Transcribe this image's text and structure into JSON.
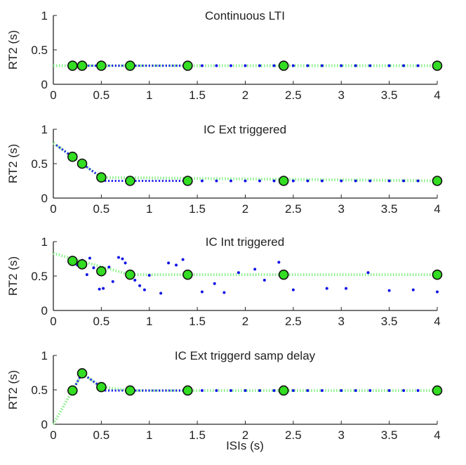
{
  "colors": {
    "axis": "#262626",
    "dots": "#1010e8",
    "dashed": "#2222ee",
    "fit": "#8cf08c",
    "marker_fill": "#33dd22",
    "marker_edge": "#111111"
  },
  "chart_data": [
    {
      "type": "scatter",
      "title": "Continuous LTI",
      "ylabel": "RT2 (s)",
      "xlabel": "",
      "xlim": [
        0,
        4
      ],
      "ylim": [
        0,
        1
      ],
      "xticks": [
        0,
        0.5,
        1,
        1.5,
        2,
        2.5,
        3,
        3.5,
        4
      ],
      "xtick_labels": [
        "0",
        "0.5",
        "1",
        "1.5",
        "2",
        "2.5",
        "3",
        "3.5",
        "4"
      ],
      "yticks": [
        0,
        0.5,
        1
      ],
      "ytick_labels": [
        "0",
        "0.5",
        "1"
      ],
      "fit_line": {
        "x": [
          0,
          4
        ],
        "y": [
          0.27,
          0.27
        ]
      },
      "dense_segments": [
        {
          "x0": 0.15,
          "x1": 1.42,
          "y0": 0.27,
          "y1": 0.27
        }
      ],
      "dots": [
        [
          1.55,
          0.27
        ],
        [
          1.7,
          0.27
        ],
        [
          1.85,
          0.27
        ],
        [
          2.0,
          0.27
        ],
        [
          2.15,
          0.27
        ],
        [
          2.3,
          0.27
        ],
        [
          2.5,
          0.27
        ],
        [
          2.65,
          0.27
        ],
        [
          2.8,
          0.27
        ],
        [
          3.0,
          0.27
        ],
        [
          3.15,
          0.27
        ],
        [
          3.3,
          0.27
        ],
        [
          3.5,
          0.27
        ],
        [
          3.65,
          0.27
        ],
        [
          3.8,
          0.27
        ]
      ],
      "markers": {
        "x": [
          0.2,
          0.3,
          0.5,
          0.8,
          1.4,
          2.4,
          4.0
        ],
        "y": [
          0.27,
          0.27,
          0.27,
          0.27,
          0.27,
          0.27,
          0.27
        ]
      }
    },
    {
      "type": "scatter",
      "title": "IC Ext triggered",
      "ylabel": "RT2 (s)",
      "xlabel": "",
      "xlim": [
        0,
        4
      ],
      "ylim": [
        0,
        1
      ],
      "xticks": [
        0,
        0.5,
        1,
        1.5,
        2,
        2.5,
        3,
        3.5,
        4
      ],
      "xtick_labels": [
        "0",
        "0.5",
        "1",
        "1.5",
        "2",
        "2.5",
        "3",
        "3.5",
        "4"
      ],
      "yticks": [
        0,
        0.5,
        1
      ],
      "ytick_labels": [
        "0",
        "0.5",
        "1"
      ],
      "fit_line": {
        "x": [
          0,
          0.5,
          4
        ],
        "y": [
          0.8,
          0.3,
          0.25
        ]
      },
      "dense_segments": [
        {
          "x0": 0.03,
          "x1": 0.5,
          "y0": 0.77,
          "y1": 0.3
        },
        {
          "x0": 0.5,
          "x1": 1.42,
          "y0": 0.25,
          "y1": 0.25
        }
      ],
      "dots": [
        [
          1.55,
          0.25
        ],
        [
          1.7,
          0.25
        ],
        [
          1.85,
          0.25
        ],
        [
          2.0,
          0.25
        ],
        [
          2.15,
          0.25
        ],
        [
          2.3,
          0.25
        ],
        [
          2.5,
          0.25
        ],
        [
          2.65,
          0.25
        ],
        [
          2.8,
          0.25
        ],
        [
          3.0,
          0.25
        ],
        [
          3.15,
          0.25
        ],
        [
          3.3,
          0.25
        ],
        [
          3.5,
          0.25
        ],
        [
          3.65,
          0.25
        ],
        [
          3.8,
          0.25
        ]
      ],
      "markers": {
        "x": [
          0.2,
          0.3,
          0.5,
          0.8,
          1.4,
          2.4,
          4.0
        ],
        "y": [
          0.6,
          0.5,
          0.3,
          0.25,
          0.25,
          0.25,
          0.25
        ]
      }
    },
    {
      "type": "scatter",
      "title": "IC Int triggered",
      "ylabel": "RT2 (s)",
      "xlabel": "",
      "xlim": [
        0,
        4
      ],
      "ylim": [
        0,
        1
      ],
      "xticks": [
        0,
        0.5,
        1,
        1.5,
        2,
        2.5,
        3,
        3.5,
        4
      ],
      "xtick_labels": [
        "0",
        "0.5",
        "1",
        "1.5",
        "2",
        "2.5",
        "3",
        "3.5",
        "4"
      ],
      "yticks": [
        0,
        0.5,
        1
      ],
      "ytick_labels": [
        "0",
        "0.5",
        "1"
      ],
      "fit_line": {
        "x": [
          0,
          0.8,
          4
        ],
        "y": [
          0.83,
          0.52,
          0.52
        ]
      },
      "dense_segments": [],
      "dots": [
        [
          0.2,
          0.72
        ],
        [
          0.25,
          0.66
        ],
        [
          0.3,
          0.73
        ],
        [
          0.35,
          0.52
        ],
        [
          0.38,
          0.76
        ],
        [
          0.42,
          0.62
        ],
        [
          0.48,
          0.31
        ],
        [
          0.52,
          0.32
        ],
        [
          0.58,
          0.63
        ],
        [
          0.62,
          0.42
        ],
        [
          0.68,
          0.77
        ],
        [
          0.72,
          0.75
        ],
        [
          0.75,
          0.69
        ],
        [
          0.8,
          0.52
        ],
        [
          0.85,
          0.44
        ],
        [
          0.9,
          0.36
        ],
        [
          0.95,
          0.3
        ],
        [
          1.0,
          0.51
        ],
        [
          1.12,
          0.25
        ],
        [
          1.2,
          0.69
        ],
        [
          1.28,
          0.66
        ],
        [
          1.35,
          0.74
        ],
        [
          1.55,
          0.27
        ],
        [
          1.68,
          0.39
        ],
        [
          1.78,
          0.26
        ],
        [
          1.93,
          0.55
        ],
        [
          2.1,
          0.6
        ],
        [
          2.2,
          0.44
        ],
        [
          2.35,
          0.7
        ],
        [
          2.5,
          0.3
        ],
        [
          2.85,
          0.32
        ],
        [
          3.05,
          0.32
        ],
        [
          3.28,
          0.55
        ],
        [
          3.5,
          0.29
        ],
        [
          3.75,
          0.3
        ],
        [
          4.0,
          0.27
        ]
      ],
      "markers": {
        "x": [
          0.2,
          0.3,
          0.5,
          0.8,
          1.4,
          2.4,
          4.0
        ],
        "y": [
          0.72,
          0.67,
          0.57,
          0.52,
          0.52,
          0.52,
          0.52
        ]
      }
    },
    {
      "type": "scatter",
      "title": "IC Ext triggerd samp delay",
      "ylabel": "RT2 (s)",
      "xlabel": "ISIs (s)",
      "xlim": [
        0,
        4
      ],
      "ylim": [
        0,
        1
      ],
      "xticks": [
        0,
        0.5,
        1,
        1.5,
        2,
        2.5,
        3,
        3.5,
        4
      ],
      "xtick_labels": [
        "0",
        "0.5",
        "1",
        "1.5",
        "2",
        "2.5",
        "3",
        "3.5",
        "4"
      ],
      "yticks": [
        0,
        0.5,
        1
      ],
      "ytick_labels": [
        "0",
        "0.5",
        "1"
      ],
      "fit_line": {
        "x": [
          0,
          0.3,
          0.5,
          0.8,
          4
        ],
        "y": [
          0.0,
          0.74,
          0.54,
          0.49,
          0.49
        ]
      },
      "dense_segments": [
        {
          "x0": 0.2,
          "x1": 0.3,
          "y0": 0.49,
          "y1": 0.74
        },
        {
          "x0": 0.3,
          "x1": 0.5,
          "y0": 0.74,
          "y1": 0.54
        },
        {
          "x0": 0.5,
          "x1": 1.42,
          "y0": 0.49,
          "y1": 0.49
        }
      ],
      "dots": [
        [
          1.55,
          0.49
        ],
        [
          1.7,
          0.49
        ],
        [
          1.85,
          0.49
        ],
        [
          2.0,
          0.49
        ],
        [
          2.15,
          0.49
        ],
        [
          2.3,
          0.49
        ],
        [
          2.5,
          0.49
        ],
        [
          2.65,
          0.49
        ],
        [
          2.8,
          0.49
        ],
        [
          3.0,
          0.49
        ],
        [
          3.15,
          0.49
        ],
        [
          3.3,
          0.49
        ],
        [
          3.5,
          0.49
        ],
        [
          3.65,
          0.49
        ],
        [
          3.8,
          0.49
        ]
      ],
      "markers": {
        "x": [
          0.2,
          0.3,
          0.5,
          0.8,
          1.4,
          2.4,
          4.0
        ],
        "y": [
          0.49,
          0.74,
          0.54,
          0.49,
          0.49,
          0.49,
          0.49
        ]
      }
    }
  ]
}
